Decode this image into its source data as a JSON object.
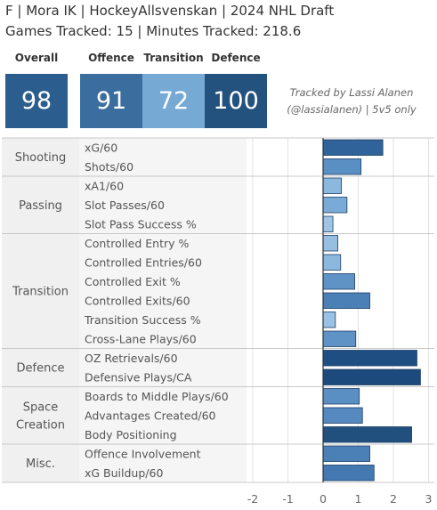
{
  "header": {
    "title_line1": "F | Mora IK | HockeyAllsvenskan | 2024 NHL Draft",
    "title_line2": "Games Tracked: 15 | Minutes Tracked: 218.6"
  },
  "scores": {
    "overall": {
      "label": "Overall",
      "value": "98",
      "color": "#2b5d8e"
    },
    "offence": {
      "label": "Offence",
      "value": "91",
      "color": "#3b6e9e"
    },
    "transition": {
      "label": "Transition",
      "value": "72",
      "color": "#76a9d4"
    },
    "defence": {
      "label": "Defence",
      "value": "100",
      "color": "#24527f"
    }
  },
  "credit": {
    "line1": "Tracked by Lassi Alanen",
    "line2": "(@lassialanen) | 5v5 only"
  },
  "chart_data": {
    "type": "bar",
    "orientation": "horizontal",
    "xlim": [
      -2,
      3
    ],
    "x_ticks": [
      "-2",
      "-1",
      "0",
      "1",
      "2",
      "3"
    ],
    "groups": [
      {
        "name": "Shooting",
        "metrics": [
          {
            "label": "xG/60",
            "value": 1.7,
            "color": "#2f639a"
          },
          {
            "label": "Shots/60",
            "value": 1.08,
            "color": "#5a8fc3"
          }
        ]
      },
      {
        "name": "Passing",
        "metrics": [
          {
            "label": "xA1/60",
            "value": 0.52,
            "color": "#8cb8de"
          },
          {
            "label": "Slot Passes/60",
            "value": 0.68,
            "color": "#79abd6"
          },
          {
            "label": "Slot Pass Success %",
            "value": 0.28,
            "color": "#9fc4e5"
          }
        ]
      },
      {
        "name": "Transition",
        "metrics": [
          {
            "label": "Controlled Entry %",
            "value": 0.42,
            "color": "#96bfe2"
          },
          {
            "label": "Controlled Entries/60",
            "value": 0.5,
            "color": "#8cb8de"
          },
          {
            "label": "Controlled Exit %",
            "value": 0.9,
            "color": "#5f93c6"
          },
          {
            "label": "Controlled Exits/60",
            "value": 1.33,
            "color": "#4a80b6"
          },
          {
            "label": "Transition Success %",
            "value": 0.35,
            "color": "#9ac2e4"
          },
          {
            "label": "Cross-Lane Plays/60",
            "value": 0.93,
            "color": "#5f93c6"
          }
        ]
      },
      {
        "name": "Defence",
        "metrics": [
          {
            "label": "OZ Retrievals/60",
            "value": 2.67,
            "color": "#1f4f82"
          },
          {
            "label": "Defensive Plays/CA",
            "value": 2.77,
            "color": "#1c4a7c"
          }
        ]
      },
      {
        "name": "Space Creation",
        "metrics": [
          {
            "label": "Boards to Middle Plays/60",
            "value": 1.03,
            "color": "#5a8fc3"
          },
          {
            "label": "Advantages Created/60",
            "value": 1.12,
            "color": "#5589bf"
          },
          {
            "label": "Body Positioning",
            "value": 2.52,
            "color": "#21507f"
          }
        ]
      },
      {
        "name": "Misc.",
        "metrics": [
          {
            "label": "Offence Involvement",
            "value": 1.33,
            "color": "#4a80b6"
          },
          {
            "label": "xG Buildup/60",
            "value": 1.45,
            "color": "#4379b0"
          }
        ]
      }
    ]
  }
}
